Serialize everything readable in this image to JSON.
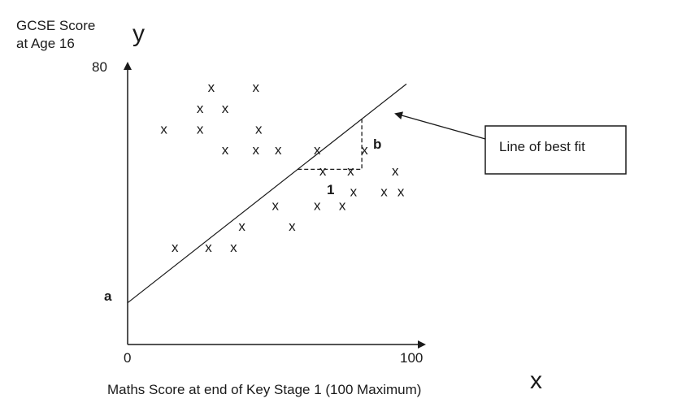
{
  "chart_data": {
    "type": "scatter",
    "y_label_line1": "GCSE Score",
    "y_label_line2": "at Age 16",
    "y_symbol": "y",
    "x_label": "Maths Score at end of Key Stage 1 (100 Maximum)",
    "x_symbol": "x",
    "x_tick_min": "0",
    "x_tick_max": "100",
    "y_tick_max": "80",
    "xlim": [
      0,
      100
    ],
    "ylim": [
      0,
      80
    ],
    "marker": "x",
    "points": [
      {
        "x": 30,
        "y": 74
      },
      {
        "x": 46,
        "y": 74
      },
      {
        "x": 26,
        "y": 68
      },
      {
        "x": 35,
        "y": 68
      },
      {
        "x": 13,
        "y": 62
      },
      {
        "x": 26,
        "y": 62
      },
      {
        "x": 47,
        "y": 62
      },
      {
        "x": 35,
        "y": 56
      },
      {
        "x": 46,
        "y": 56
      },
      {
        "x": 54,
        "y": 56
      },
      {
        "x": 68,
        "y": 56
      },
      {
        "x": 85,
        "y": 56
      },
      {
        "x": 70,
        "y": 50
      },
      {
        "x": 80,
        "y": 50
      },
      {
        "x": 96,
        "y": 50
      },
      {
        "x": 81,
        "y": 44
      },
      {
        "x": 92,
        "y": 44
      },
      {
        "x": 98,
        "y": 44
      },
      {
        "x": 53,
        "y": 40
      },
      {
        "x": 68,
        "y": 40
      },
      {
        "x": 77,
        "y": 40
      },
      {
        "x": 41,
        "y": 34
      },
      {
        "x": 59,
        "y": 34
      },
      {
        "x": 17,
        "y": 28
      },
      {
        "x": 29,
        "y": 28
      },
      {
        "x": 38,
        "y": 28
      }
    ],
    "best_fit": {
      "x0": 0,
      "y0": 12,
      "x1": 100,
      "y1": 75
    },
    "intercept_label": "a",
    "gradient_label": "b",
    "run_label": "1",
    "annotation": "Line of best fit"
  }
}
